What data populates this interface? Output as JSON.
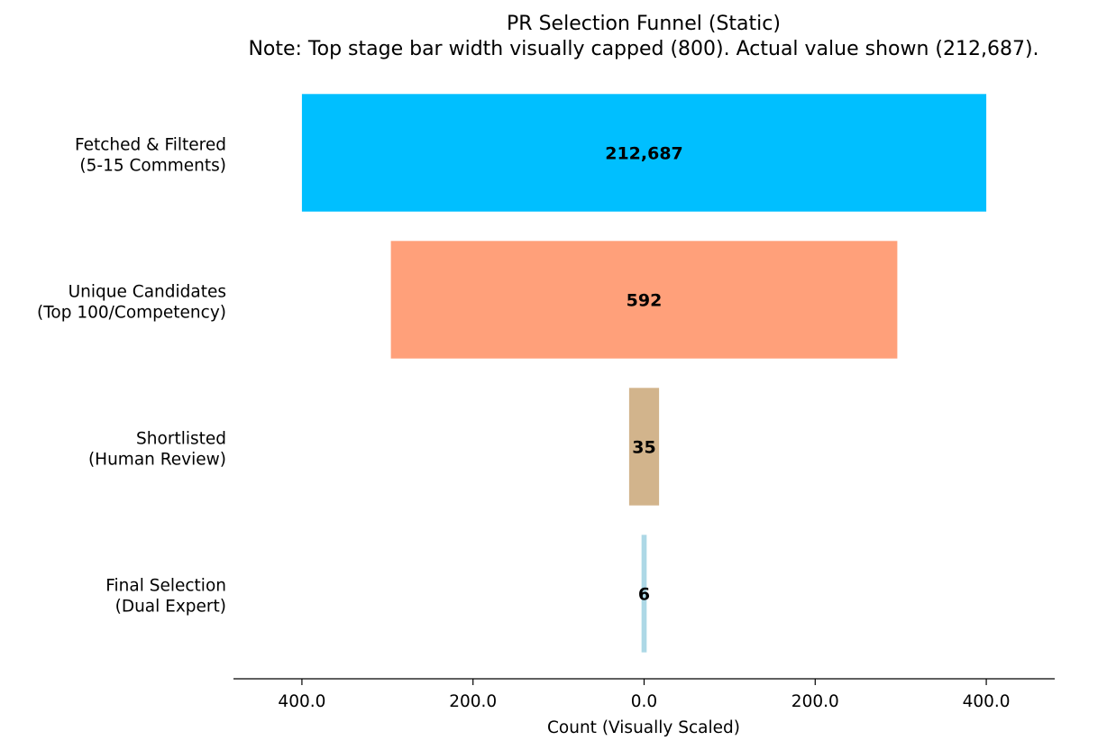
{
  "chart_data": {
    "type": "bar",
    "orientation": "horizontal-funnel",
    "title": "PR Selection Funnel (Static)",
    "subtitle": "Note: Top stage bar width visually capped (800). Actual value shown (212,687).",
    "xlabel": "Count (Visually Scaled)",
    "ylabel": "",
    "xlim": [
      -480,
      480
    ],
    "xticks": [
      -400,
      -200,
      0,
      200,
      400
    ],
    "xtick_labels": [
      "400.0",
      "200.0",
      "0.0",
      "200.0",
      "400.0"
    ],
    "categories": [
      [
        "Fetched & Filtered",
        "(5-15 Comments)"
      ],
      [
        "Unique Candidates",
        "(Top 100/Competency)"
      ],
      [
        "Shortlisted",
        "(Human Review)"
      ],
      [
        "Final Selection",
        "(Dual Expert)"
      ]
    ],
    "values": [
      212687,
      592,
      35,
      6
    ],
    "value_labels": [
      "212,687",
      "592",
      "35",
      "6"
    ],
    "display_widths": [
      800,
      592,
      35,
      6
    ],
    "colors": [
      "#00bfff",
      "#ffa07a",
      "#d2b48c",
      "#add8e6"
    ],
    "grid": false,
    "legend": "none"
  }
}
